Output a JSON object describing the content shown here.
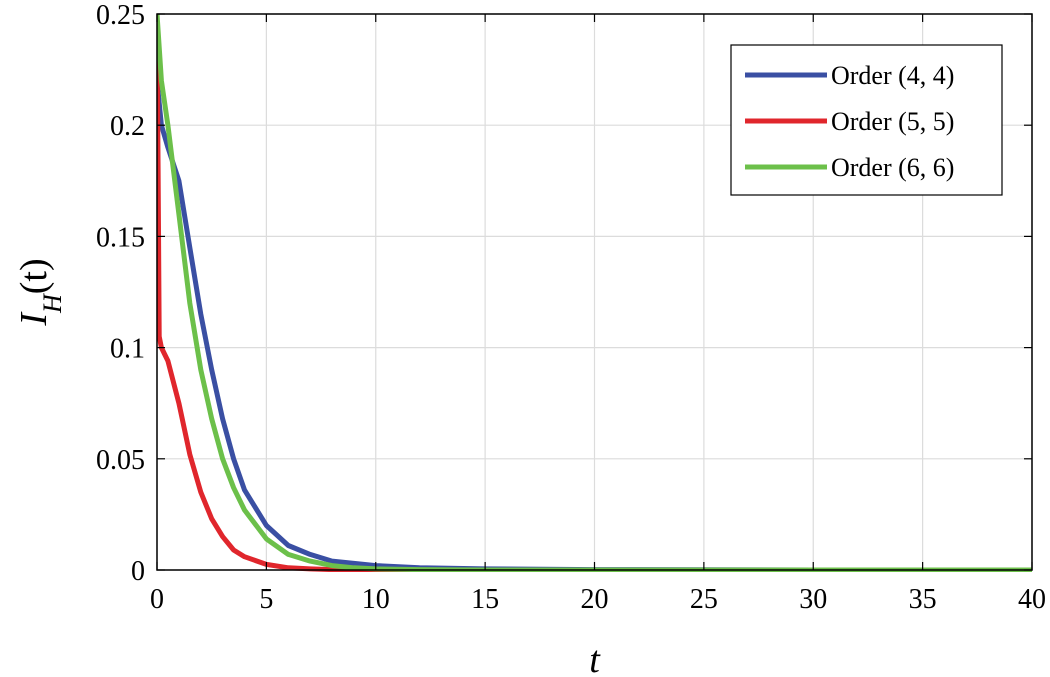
{
  "chart_data": {
    "type": "line",
    "xlabel": "t",
    "ylabel": "I",
    "ylabel_sub": "H",
    "ylabel_arg": "(t)",
    "xlim": [
      0,
      40
    ],
    "ylim": [
      0,
      0.25
    ],
    "x_ticks": [
      0,
      5,
      10,
      15,
      20,
      25,
      30,
      35,
      40
    ],
    "y_ticks": [
      0,
      0.05,
      0.1,
      0.15,
      0.2,
      0.25
    ],
    "x_tick_labels": [
      "0",
      "5",
      "10",
      "15",
      "20",
      "25",
      "30",
      "35",
      "40"
    ],
    "y_tick_labels": [
      "0",
      "0.05",
      "0.1",
      "0.15",
      "0.2",
      "0.25"
    ],
    "grid": true,
    "legend_position": "top-right",
    "series": [
      {
        "name": "Order (4, 4)",
        "color": "#3a4fa3",
        "x": [
          0,
          0.2,
          0.5,
          1,
          1.5,
          2,
          2.5,
          3,
          3.5,
          4,
          5,
          6,
          7,
          8,
          9,
          10,
          12,
          15,
          20,
          25,
          30,
          35,
          40
        ],
        "y": [
          0.22,
          0.2,
          0.19,
          0.175,
          0.145,
          0.115,
          0.09,
          0.068,
          0.05,
          0.036,
          0.02,
          0.011,
          0.007,
          0.004,
          0.003,
          0.002,
          0.001,
          0.0005,
          0.0002,
          0.0001,
          0,
          0,
          0
        ]
      },
      {
        "name": "Order (5, 5)",
        "color": "#e0262c",
        "x": [
          0,
          0.05,
          0.1,
          0.2,
          0.5,
          1,
          1.5,
          2,
          2.5,
          3,
          3.5,
          4,
          5,
          6,
          7,
          8,
          10,
          15,
          20,
          25,
          30,
          35,
          40
        ],
        "y": [
          0.24,
          0.18,
          0.105,
          0.1,
          0.094,
          0.075,
          0.052,
          0.035,
          0.023,
          0.015,
          0.009,
          0.006,
          0.0025,
          0.001,
          0.0005,
          0.0002,
          0,
          0,
          0,
          0,
          0,
          0,
          0
        ]
      },
      {
        "name": "Order (6, 6)",
        "color": "#6cc04a",
        "x": [
          0,
          0.2,
          0.5,
          1,
          1.5,
          2,
          2.5,
          3,
          3.5,
          4,
          5,
          6,
          7,
          8,
          9,
          10,
          12,
          15,
          20,
          25,
          30,
          35,
          40
        ],
        "y": [
          0.25,
          0.22,
          0.2,
          0.16,
          0.12,
          0.09,
          0.068,
          0.05,
          0.037,
          0.027,
          0.014,
          0.007,
          0.004,
          0.002,
          0.001,
          0.0005,
          0.0002,
          0,
          0,
          0,
          0,
          0,
          0
        ]
      }
    ]
  }
}
